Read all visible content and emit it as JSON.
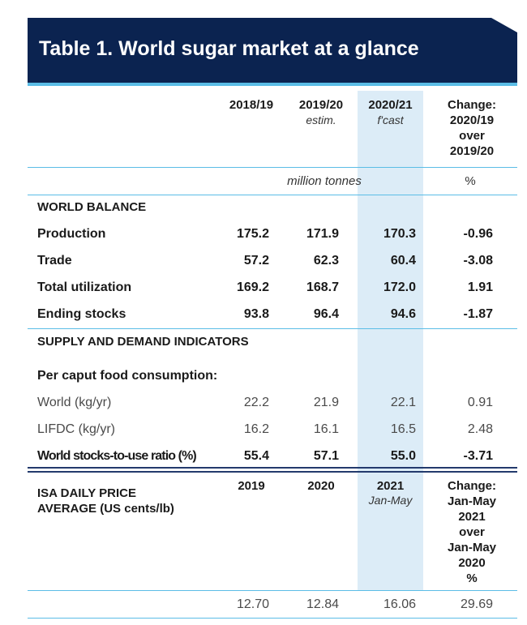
{
  "title": "Table 1. World sugar market at a glance",
  "colors": {
    "banner": "#0b2350",
    "accent": "#5bbde6",
    "highlight": "#dcecf7"
  },
  "header": {
    "col1": "2018/19",
    "col2": "2019/20",
    "col2_sub": "estim.",
    "col3": "2020/21",
    "col3_sub": "f'cast",
    "col4": [
      "Change:",
      "2020/19",
      "over",
      "2019/20"
    ]
  },
  "units": {
    "main": "million tonnes",
    "pct": "%"
  },
  "world_balance": {
    "heading": "WORLD BALANCE",
    "rows": [
      {
        "label": "Production",
        "v": [
          "175.2",
          "171.9",
          "170.3",
          "-0.96"
        ]
      },
      {
        "label": "Trade",
        "v": [
          "57.2",
          "62.3",
          "60.4",
          "-3.08"
        ]
      },
      {
        "label": "Total utilization",
        "v": [
          "169.2",
          "168.7",
          "172.0",
          "1.91"
        ]
      },
      {
        "label": "Ending stocks",
        "v": [
          "93.8",
          "96.4",
          "94.6",
          "-1.87"
        ]
      }
    ]
  },
  "supply_demand": {
    "heading": "SUPPLY AND DEMAND INDICATORS",
    "subheading": "Per caput food consumption:",
    "rows": [
      {
        "label": "World (kg/yr)",
        "v": [
          "22.2",
          "21.9",
          "22.1",
          "0.91"
        ]
      },
      {
        "label": "LIFDC (kg/yr)",
        "v": [
          "16.2",
          "16.1",
          "16.5",
          "2.48"
        ]
      },
      {
        "label": "World stocks-to-use ratio (%)",
        "v": [
          "55.4",
          "57.1",
          "55.0",
          "-3.71"
        ]
      }
    ]
  },
  "price": {
    "label": [
      "ISA DAILY PRICE",
      "AVERAGE (US cents/lb)"
    ],
    "col1": "2019",
    "col2": "2020",
    "col3": "2021",
    "col3_sub": "Jan-May",
    "col4": [
      "Change:",
      "Jan-May",
      "2021",
      "over",
      "Jan-May",
      "2020",
      "%"
    ],
    "values": [
      "12.70",
      "12.84",
      "16.06",
      "29.69"
    ]
  }
}
